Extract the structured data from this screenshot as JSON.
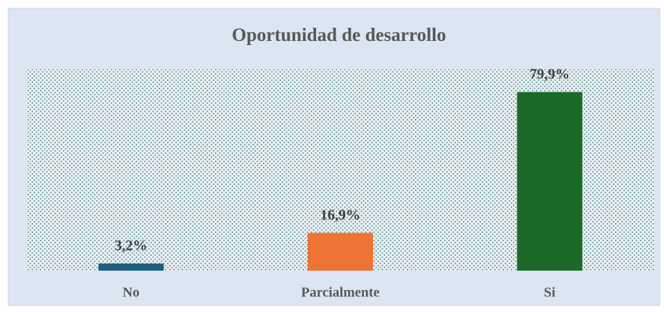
{
  "chart_data": {
    "type": "bar",
    "title": "Oportunidad de desarrollo",
    "categories": [
      "No",
      "Parcialmente",
      "Si"
    ],
    "values": [
      3.2,
      16.9,
      79.9
    ],
    "value_labels": [
      "3,2%",
      "16,9%",
      "79,9%"
    ],
    "colors": [
      "#1c5e80",
      "#ed7434",
      "#1b6a28"
    ],
    "ylim": [
      0,
      90
    ],
    "grid": false
  }
}
